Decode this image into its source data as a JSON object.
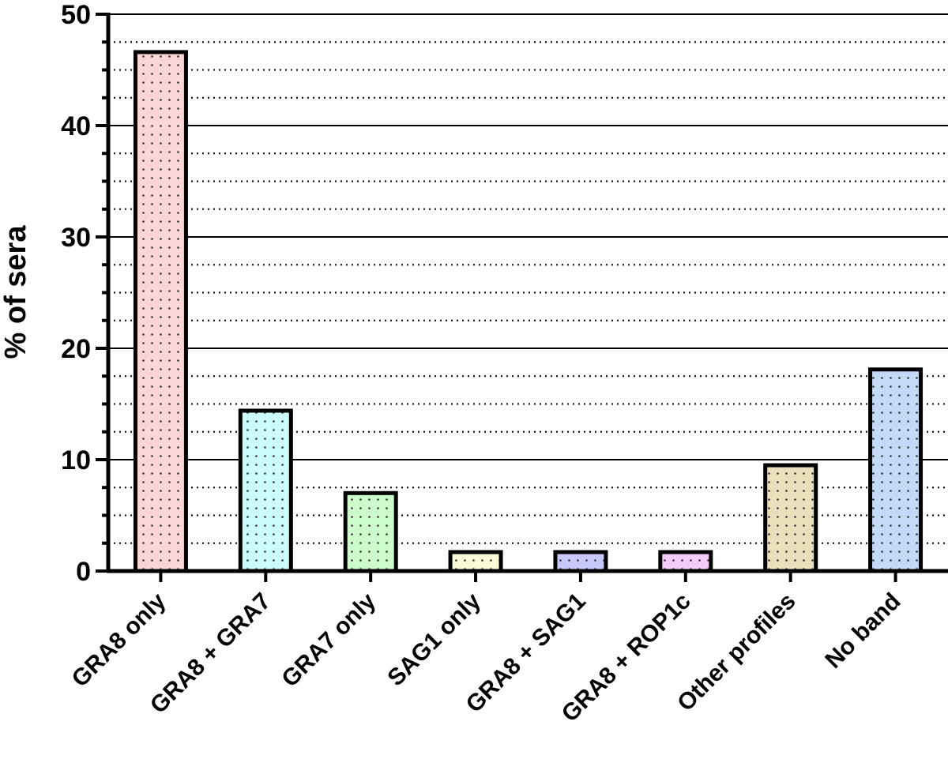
{
  "chart_data": {
    "type": "bar",
    "y_label": "% of sera",
    "categories": [
      "GRA8 only",
      "GRA8 + GRA7",
      "GRA7 only",
      "SAG1 only",
      "GRA8 + SAG1",
      "GRA8 + ROP1c",
      "Other profiles",
      "No band"
    ],
    "values": [
      46.6,
      14.4,
      7.0,
      1.7,
      1.7,
      1.7,
      9.5,
      18.1
    ],
    "colors": [
      "#fcd6d6",
      "#ccfcfc",
      "#ccfccc",
      "#fcfcd8",
      "#c8c8fc",
      "#f4ccfc",
      "#ece0bc",
      "#c4daf8"
    ],
    "ylim": [
      0,
      50
    ],
    "yticks": [
      0,
      10,
      20,
      30,
      40,
      50
    ],
    "minor_yticks": [
      2.5,
      5,
      7.5,
      12.5,
      15,
      17.5,
      22.5,
      25,
      27.5,
      32.5,
      35,
      37.5,
      42.5,
      45,
      47.5
    ],
    "grid": true
  }
}
